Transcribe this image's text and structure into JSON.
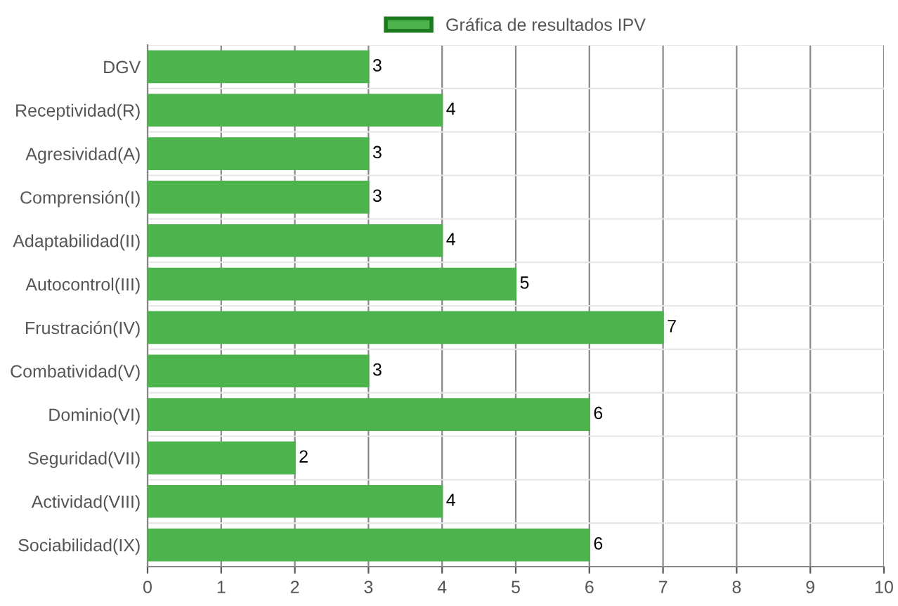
{
  "chart_data": {
    "type": "bar",
    "orientation": "horizontal",
    "categories": [
      "DGV",
      "Receptividad(R)",
      "Agresividad(A)",
      "Comprensión(I)",
      "Adaptabilidad(II)",
      "Autocontrol(III)",
      "Frustración(IV)",
      "Combatividad(V)",
      "Dominio(VI)",
      "Seguridad(VII)",
      "Actividad(VIII)",
      "Sociabilidad(IX)"
    ],
    "series": [
      {
        "name": "Gráfica de resultados IPV",
        "color": "#4db44d",
        "values": [
          3,
          4,
          3,
          3,
          4,
          5,
          7,
          3,
          6,
          2,
          4,
          6
        ]
      }
    ],
    "xlim": [
      0,
      10
    ],
    "xticks": [
      0,
      1,
      2,
      3,
      4,
      5,
      6,
      7,
      8,
      9,
      10
    ],
    "grid": true,
    "legend": "top",
    "data_labels": true
  }
}
